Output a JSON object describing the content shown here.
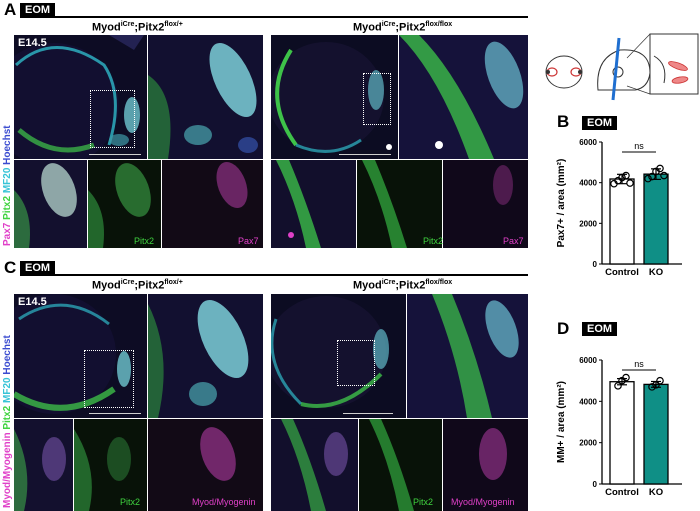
{
  "panels": {
    "A": {
      "letter": "A",
      "tag": "EOM",
      "stage": "E14.5",
      "genotype_ctrl": {
        "base": "Myod",
        "sup1": "iCre",
        "mid": ";Pitx2",
        "sup2": "flox/+"
      },
      "genotype_ko": {
        "base": "Myod",
        "sup1": "iCre",
        "mid": ";Pitx2",
        "sup2": "flox/flox"
      },
      "stain_label": [
        "Pax7",
        " Pitx2",
        " MF20",
        " Hoechst"
      ],
      "chan_green": "Pitx2",
      "chan_magenta": "Pax7"
    },
    "B": {
      "letter": "B",
      "tag": "EOM"
    },
    "C": {
      "letter": "C",
      "tag": "EOM",
      "stage": "E14.5",
      "genotype_ctrl": {
        "base": "Myod",
        "sup1": "iCre",
        "mid": ";Pitx2",
        "sup2": "flox/+"
      },
      "genotype_ko": {
        "base": "Myod",
        "sup1": "iCre",
        "mid": ";Pitx2",
        "sup2": "flox/flox"
      },
      "stain_label": [
        "Myod/Myogenin",
        " Pitx2",
        " MF20",
        " Hoechst"
      ],
      "chan_green": "Pitx2",
      "chan_magenta": "Myod/Myogenin"
    },
    "D": {
      "letter": "D",
      "tag": "EOM"
    }
  },
  "colors": {
    "magenta": "#e040c8",
    "green": "#3fd33f",
    "cyan": "#36c3d6",
    "blue": "#3a4bd0",
    "teal": "#0f8f86"
  },
  "chart_data": [
    {
      "type": "bar",
      "categories": [
        "Control",
        "KO"
      ],
      "values": [
        4180,
        4420
      ],
      "points": [
        [
          3950,
          4100,
          4250,
          4350,
          3980
        ],
        [
          4200,
          4300,
          4550,
          4700,
          4350
        ]
      ],
      "errors": [
        230,
        260
      ],
      "ylabel": "Pax7+ / area (mm²)",
      "ylim": [
        0,
        6000
      ],
      "yticks": [
        "0",
        "2000",
        "4000",
        "6000"
      ],
      "significance": "ns"
    },
    {
      "type": "bar",
      "categories": [
        "Control",
        "KO"
      ],
      "values": [
        4950,
        4820
      ],
      "points": [
        [
          4750,
          5000,
          5150
        ],
        [
          4700,
          4800,
          5000
        ]
      ],
      "errors": [
        150,
        140
      ],
      "ylabel": "MM+ / area (mm²)",
      "ylim": [
        0,
        6000
      ],
      "yticks": [
        "0",
        "2000",
        "4000",
        "6000"
      ],
      "significance": "ns"
    }
  ]
}
